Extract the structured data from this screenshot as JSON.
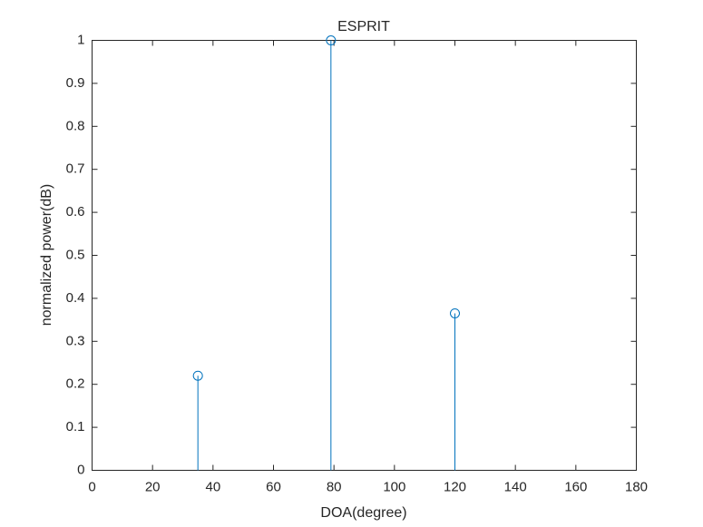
{
  "chart_data": {
    "type": "stem",
    "title": "ESPRIT",
    "x_label": "DOA(degree)",
    "y_label": "normalized power(dB)",
    "x": [
      35,
      79,
      120
    ],
    "values": [
      0.22,
      1,
      0.365
    ],
    "color": "#0072bd",
    "xlim": [
      0,
      180
    ],
    "xticks": [
      0,
      20,
      40,
      60,
      80,
      100,
      120,
      140,
      160,
      180
    ],
    "ylim": [
      0,
      1
    ],
    "yticks": [
      0,
      0.1,
      0.2,
      0.3,
      0.4,
      0.5,
      0.6,
      0.7,
      0.8,
      0.9,
      1
    ],
    "grid": false
  }
}
